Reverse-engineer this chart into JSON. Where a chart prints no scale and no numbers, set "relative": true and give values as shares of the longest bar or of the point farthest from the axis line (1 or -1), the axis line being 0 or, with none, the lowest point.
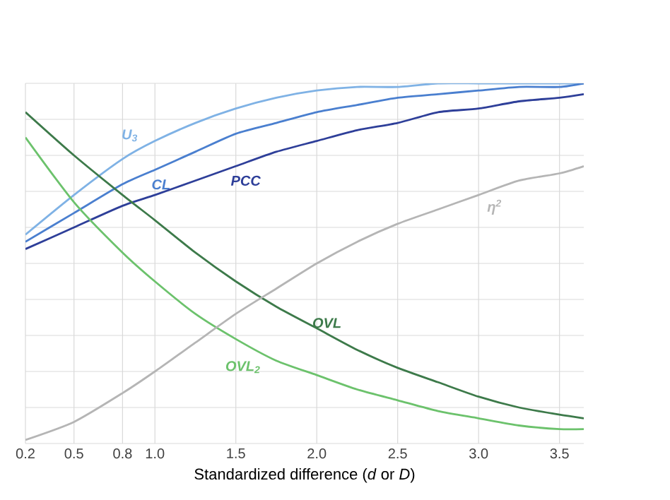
{
  "chart_data": {
    "type": "line",
    "relative": true,
    "grid": true,
    "legend": false,
    "xlabel": "Standardized difference (*d* or *D*)",
    "x": [
      0.2,
      0.5,
      0.8,
      1.0,
      1.25,
      1.5,
      1.75,
      2.0,
      2.25,
      2.5,
      2.75,
      3.0,
      3.25,
      3.5,
      3.65
    ],
    "xlim": [
      0.2,
      3.65
    ],
    "xticks": [
      0.2,
      0.5,
      0.8,
      {
        "value": 1,
        "label": "1.0"
      },
      1.5,
      {
        "value": 2,
        "label": "2.0"
      },
      2.5,
      {
        "value": 3,
        "label": "3.0"
      },
      3.5
    ],
    "series": [
      {
        "name": "U$_{3}$",
        "color": "#7fb2e5",
        "values": [
          0.58,
          0.69,
          0.79,
          0.84,
          0.89,
          0.93,
          0.96,
          0.98,
          0.99,
          0.99,
          1.0,
          1.0,
          1.0,
          1.0,
          1.0
        ]
      },
      {
        "name": "CL",
        "color": "#4a7fcf",
        "values": [
          0.56,
          0.64,
          0.72,
          0.76,
          0.81,
          0.86,
          0.89,
          0.92,
          0.94,
          0.96,
          0.97,
          0.98,
          0.99,
          0.99,
          1.0
        ]
      },
      {
        "name": "PCC",
        "color": "#2e3f99",
        "values": [
          0.54,
          0.6,
          0.66,
          0.69,
          0.73,
          0.77,
          0.81,
          0.84,
          0.87,
          0.89,
          0.92,
          0.93,
          0.95,
          0.96,
          0.97
        ]
      },
      {
        "name": "OVL",
        "color": "#3d7a4a",
        "values": [
          0.92,
          0.8,
          0.69,
          0.62,
          0.53,
          0.45,
          0.38,
          0.32,
          0.26,
          0.21,
          0.17,
          0.13,
          0.1,
          0.08,
          0.07
        ]
      },
      {
        "name": "OVL$_{2}$",
        "color": "#6cc26c",
        "values": [
          0.85,
          0.67,
          0.53,
          0.45,
          0.36,
          0.29,
          0.23,
          0.19,
          0.15,
          0.12,
          0.09,
          0.07,
          0.05,
          0.04,
          0.04
        ]
      },
      {
        "name": "η$^{2}$",
        "color": "#b5b5b5",
        "values": [
          0.01,
          0.06,
          0.14,
          0.2,
          0.28,
          0.36,
          0.43,
          0.5,
          0.56,
          0.61,
          0.65,
          0.69,
          0.73,
          0.75,
          0.77
        ]
      }
    ]
  }
}
